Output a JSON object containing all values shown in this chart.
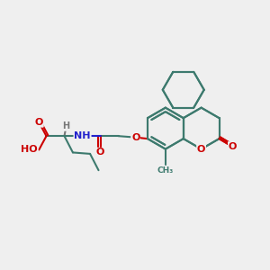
{
  "bg_color": "#efefef",
  "bond_color": "#3d7a6e",
  "bond_width": 1.5,
  "atom_colors": {
    "O": "#cc0000",
    "N": "#2222cc",
    "H": "#777777",
    "C": "#3d7a6e"
  },
  "fig_size": [
    3.0,
    3.0
  ],
  "dpi": 100,
  "xlim": [
    0,
    10
  ],
  "ylim": [
    0,
    10
  ]
}
